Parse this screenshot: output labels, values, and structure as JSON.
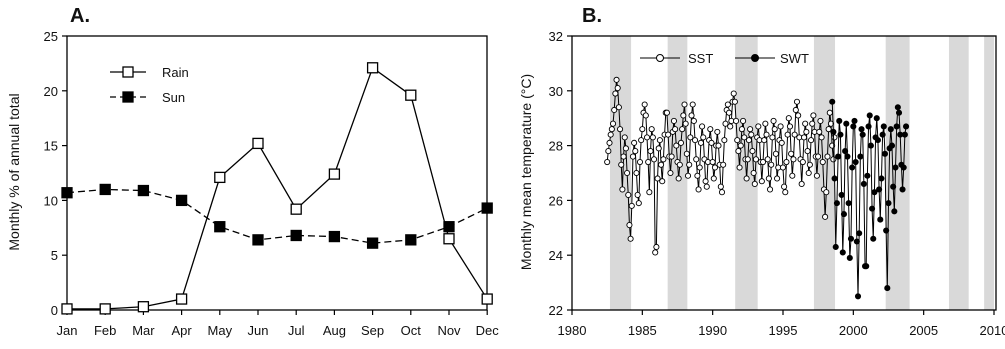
{
  "chart_data": [
    {
      "panel_label": "A.",
      "type": "line",
      "ylabel": "Monthly % of annual total",
      "xlabel": "",
      "categories": [
        "Jan",
        "Feb",
        "Mar",
        "Apr",
        "May",
        "Jun",
        "Jul",
        "Aug",
        "Sep",
        "Oct",
        "Nov",
        "Dec"
      ],
      "ylim": [
        0,
        25
      ],
      "yticks": [
        "0",
        "5",
        "10",
        "15",
        "20",
        "25"
      ],
      "grid": false,
      "legend_position": "top-left",
      "series": [
        {
          "name": "Rain",
          "marker": "open-square",
          "line": "solid",
          "values": [
            0.1,
            0.1,
            0.3,
            1.0,
            12.1,
            15.2,
            9.2,
            12.4,
            22.1,
            19.6,
            6.5,
            1.0
          ]
        },
        {
          "name": "Sun",
          "marker": "filled-square",
          "line": "dashed",
          "values": [
            10.7,
            11.0,
            10.9,
            10.0,
            7.6,
            6.4,
            6.8,
            6.7,
            6.1,
            6.4,
            7.6,
            9.3
          ]
        }
      ]
    },
    {
      "panel_label": "B.",
      "type": "line",
      "ylabel": "Monthly mean temperature (°C)",
      "xlabel": "",
      "xlim": [
        1980,
        2010
      ],
      "ylim": [
        22,
        32
      ],
      "xticks": [
        "1980",
        "1985",
        "1990",
        "1995",
        "2000",
        "2005",
        "2010"
      ],
      "yticks": [
        "22",
        "24",
        "26",
        "28",
        "30",
        "32"
      ],
      "grid": false,
      "legend_position": "top-left",
      "shaded_periods": [
        [
          1982.7,
          1984.2
        ],
        [
          1986.8,
          1988.2
        ],
        [
          1991.6,
          1993.2
        ],
        [
          1997.2,
          1998.7
        ],
        [
          2002.3,
          2004.0
        ],
        [
          2006.8,
          2008.2
        ],
        [
          2009.3,
          2010.0
        ]
      ],
      "series": [
        {
          "name": "SST",
          "marker": "open-circle",
          "line": "solid",
          "start": 1982.5,
          "step": 0.0833,
          "values": [
            27.4,
            27.8,
            28.1,
            28.4,
            28.6,
            28.8,
            29.3,
            29.9,
            30.4,
            30.1,
            29.4,
            28.6,
            27.3,
            26.4,
            27.6,
            28.3,
            27.9,
            27.0,
            26.2,
            25.1,
            24.6,
            25.8,
            27.6,
            28.1,
            27.8,
            27.0,
            26.2,
            25.9,
            27.4,
            28.2,
            28.6,
            29.2,
            29.5,
            29.1,
            28.3,
            27.4,
            26.3,
            27.8,
            28.6,
            28.3,
            27.5,
            24.1,
            24.3,
            26.8,
            27.9,
            28.2,
            27.3,
            26.7,
            27.5,
            28.4,
            29.2,
            29.2,
            28.4,
            27.6,
            27.0,
            27.6,
            28.5,
            28.9,
            28.6,
            28.0,
            27.4,
            26.8,
            27.3,
            28.1,
            28.6,
            29.1,
            29.5,
            28.8,
            27.7,
            26.9,
            27.3,
            28.3,
            29.1,
            29.5,
            28.9,
            28.2,
            27.5,
            26.9,
            26.4,
            27.2,
            28.1,
            28.7,
            28.3,
            27.5,
            26.7,
            26.5,
            27.4,
            28.2,
            28.6,
            28.1,
            27.4,
            26.8,
            27.2,
            28.0,
            28.5,
            28.0,
            27.3,
            26.5,
            26.3,
            27.3,
            28.2,
            28.8,
            29.3,
            29.5,
            29.2,
            28.7,
            28.9,
            29.6,
            29.9,
            29.6,
            28.9,
            28.2,
            27.8,
            27.2,
            28.0,
            28.6,
            28.9,
            28.3,
            27.5,
            26.8,
            27.5,
            28.2,
            28.6,
            28.4,
            27.8,
            27.0,
            26.6,
            27.5,
            28.3,
            28.7,
            28.2,
            27.4,
            26.7,
            27.4,
            28.2,
            28.8,
            28.4,
            27.5,
            26.8,
            26.4,
            27.3,
            28.3,
            28.9,
            28.6,
            27.7,
            26.8,
            27.2,
            28.2,
            28.7,
            28.1,
            27.2,
            26.5,
            26.3,
            27.4,
            28.4,
            29.0,
            28.7,
            27.7,
            26.9,
            27.5,
            28.4,
            29.3,
            29.6,
            29.1,
            28.3,
            27.5,
            26.6,
            27.4,
            28.3,
            28.8,
            28.5,
            27.8,
            27.0,
            27.3,
            28.2,
            28.8,
            29.1,
            28.5,
            27.6,
            26.9,
            27.6,
            28.5,
            28.9,
            28.3,
            27.4,
            26.4,
            25.4,
            26.3,
            27.6,
            28.6,
            29.2,
            28.8,
            28.0,
            27.5,
            28.3
          ]
        },
        {
          "name": "SWT",
          "marker": "filled-circle",
          "line": "solid",
          "start": 1998.5,
          "step": 0.0833,
          "values": [
            29.6,
            28.5,
            26.8,
            24.3,
            25.9,
            27.6,
            28.9,
            28.4,
            26.2,
            24.1,
            25.5,
            27.8,
            28.8,
            27.6,
            25.9,
            23.9,
            24.6,
            27.2,
            28.7,
            28.9,
            27.4,
            24.5,
            22.5,
            24.8,
            27.6,
            28.6,
            28.4,
            26.6,
            23.6,
            23.6,
            26.9,
            28.7,
            29.1,
            28.0,
            25.7,
            24.6,
            26.3,
            28.3,
            29.0,
            28.2,
            26.4,
            25.3,
            26.8,
            28.4,
            28.7,
            27.7,
            24.9,
            22.8,
            25.9,
            27.9,
            28.6,
            28.0,
            26.5,
            25.6,
            27.2,
            28.7,
            29.4,
            29.2,
            28.4,
            27.3,
            26.4,
            27.2,
            28.4,
            28.7
          ]
        }
      ]
    }
  ]
}
